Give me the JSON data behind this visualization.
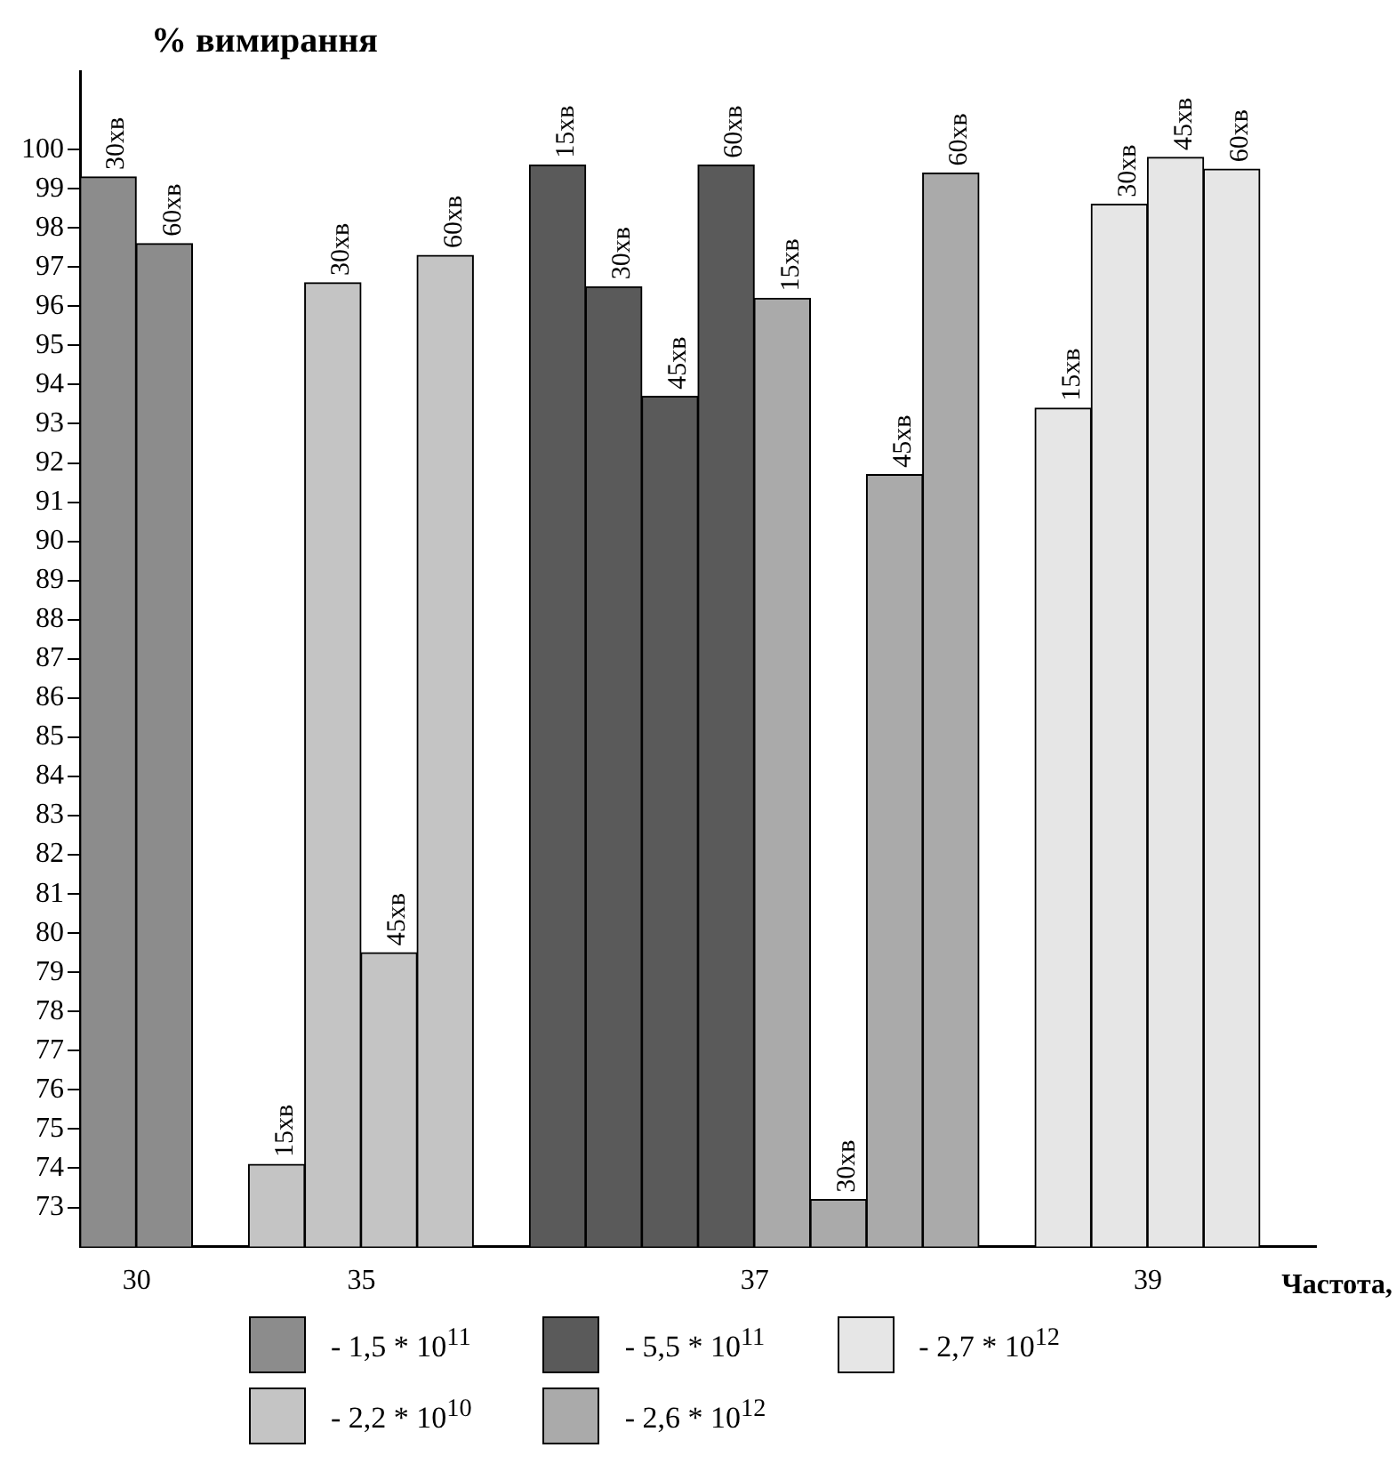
{
  "chart_data": {
    "type": "bar",
    "ylabel": "% вимирання",
    "xlabel": "Частота,",
    "categories": [
      null,
      "30",
      null,
      null,
      null,
      "35",
      null,
      null,
      null,
      null,
      null,
      null,
      "37",
      null,
      null,
      null,
      null,
      null,
      null,
      "39",
      null,
      null
    ],
    "series": [
      {
        "name": "- 1,5 * 10$^{11}$",
        "color": "#8c8c8c",
        "values": [
          99.3,
          97.6,
          null,
          null,
          null,
          null,
          null,
          null,
          null,
          null,
          null,
          null,
          null,
          null,
          null,
          null,
          null,
          null,
          null,
          null,
          null,
          null
        ]
      },
      {
        "name": "- 2,2 * 10$^{10}$",
        "color": "#c4c4c4",
        "values": [
          null,
          null,
          null,
          74.1,
          96.6,
          79.5,
          97.3,
          null,
          null,
          null,
          null,
          null,
          null,
          null,
          null,
          null,
          null,
          null,
          null,
          null,
          null,
          null
        ]
      },
      {
        "name": "- 5,5 * 10$^{11}$",
        "color": "#5a5a5a",
        "values": [
          null,
          null,
          null,
          null,
          null,
          null,
          null,
          null,
          99.6,
          96.5,
          93.7,
          99.6,
          null,
          null,
          null,
          null,
          null,
          null,
          null,
          null,
          null,
          null
        ]
      },
      {
        "name": "- 2,6 * 10$^{12}$",
        "color": "#aaaaaa",
        "values": [
          null,
          null,
          null,
          null,
          null,
          null,
          null,
          null,
          null,
          null,
          null,
          null,
          96.2,
          73.2,
          91.7,
          99.4,
          null,
          null,
          null,
          null,
          null,
          null
        ]
      },
      {
        "name": "- 2,7 * 10$^{12}$",
        "color": "#e6e6e6",
        "values": [
          null,
          null,
          null,
          null,
          null,
          null,
          null,
          null,
          null,
          null,
          null,
          null,
          null,
          null,
          null,
          null,
          null,
          93.4,
          98.6,
          99.8,
          99.5,
          null
        ]
      }
    ],
    "annotations": [
      {
        "text": "30хв",
        "y": 99.3
      },
      {
        "text": "60хв",
        "y": 97.6
      },
      {
        "text": "15хв",
        "y": 74.1
      },
      {
        "text": "30хв",
        "y": 96.6
      },
      {
        "text": "45хв",
        "y": 79.5
      },
      {
        "text": "60хв",
        "y": 97.3
      },
      {
        "text": "15хв",
        "y": 99.6
      },
      {
        "text": "30хв",
        "y": 96.5
      },
      {
        "text": "45хв",
        "y": 93.7
      },
      {
        "text": "60хв",
        "y": 99.6
      },
      {
        "text": "15хв",
        "y": 96.2
      },
      {
        "text": "30хв",
        "y": 73.2
      },
      {
        "text": "45хв",
        "y": 91.7
      },
      {
        "text": "60хв",
        "y": 99.4
      },
      {
        "text": "15хв",
        "y": 93.4
      },
      {
        "text": "30хв",
        "y": 98.6
      },
      {
        "text": "45хв",
        "y": 99.8
      },
      {
        "text": "60хв",
        "y": 99.5
      }
    ],
    "ylim": [
      72,
      102
    ],
    "yticks": [
      73,
      74,
      75,
      76,
      77,
      78,
      79,
      80,
      81,
      82,
      83,
      84,
      85,
      86,
      87,
      88,
      89,
      90,
      91,
      92,
      93,
      94,
      95,
      96,
      97,
      98,
      99,
      100
    ],
    "grid": false,
    "legend": "bottom"
  }
}
